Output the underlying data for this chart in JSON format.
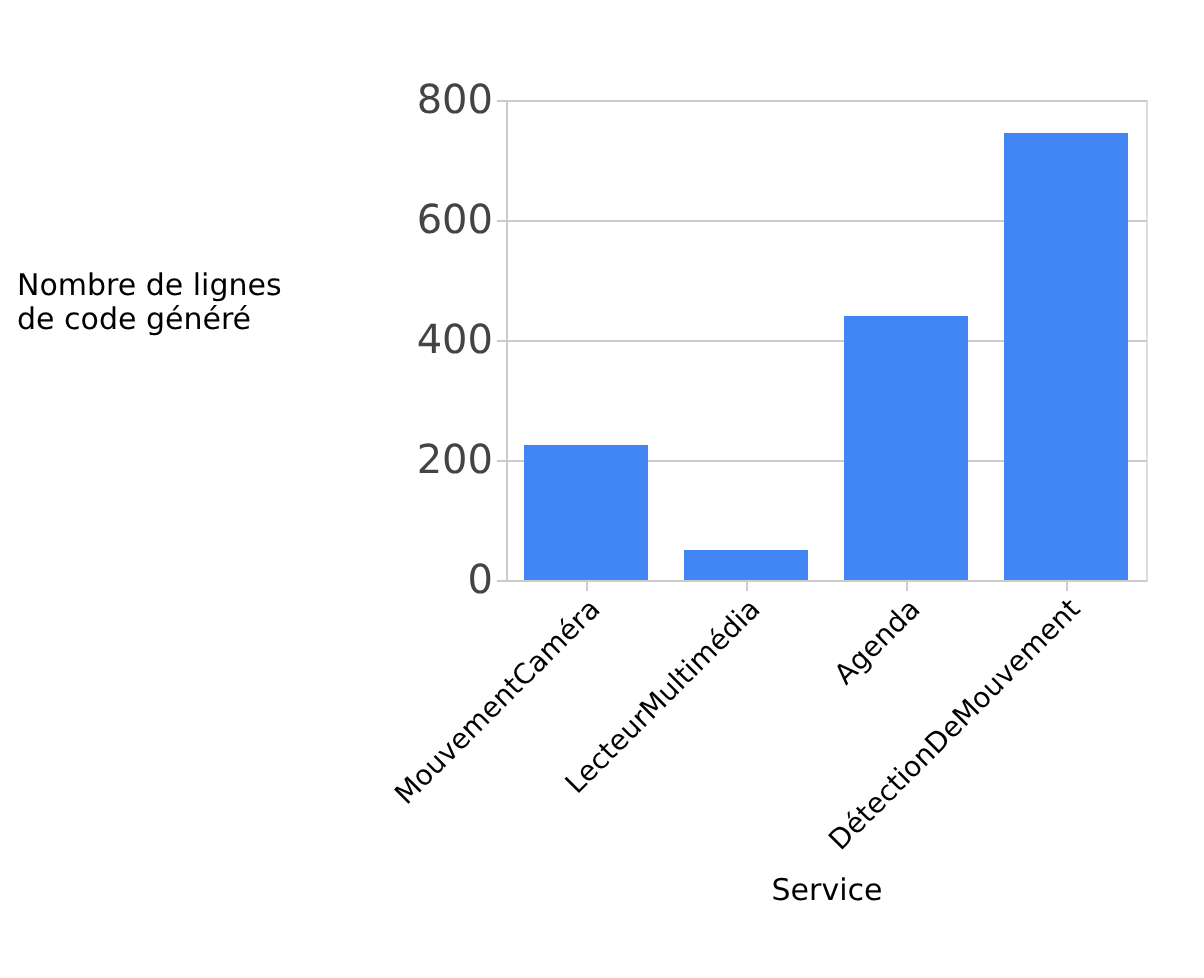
{
  "chart_data": {
    "type": "bar",
    "xlabel": "Service",
    "ylabel": "Nombre de lignes\nde code généré",
    "categories": [
      "MouvementCaméra",
      "LecteurMultimédia",
      "Agenda",
      "DétectionDeMouvement"
    ],
    "values": [
      225,
      50,
      440,
      745
    ],
    "color": "#4285f4",
    "ylim": [
      0,
      800
    ],
    "yticks": [
      0,
      200,
      400,
      600,
      800
    ],
    "grid": "y"
  }
}
